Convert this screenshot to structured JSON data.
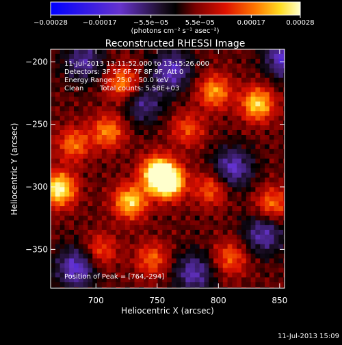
{
  "chart_data": {
    "type": "heatmap",
    "title": "Reconstructed RHESSI Image",
    "xlabel": "Heliocentric X (arcsec)",
    "ylabel": "Heliocentric Y (arcsec)",
    "xlim": [
      663,
      854
    ],
    "ylim": [
      -381,
      -190
    ],
    "x_ticks": [
      700,
      750,
      800,
      850
    ],
    "y_ticks": [
      -200,
      -250,
      -300,
      -350
    ],
    "x_tick_labels": [
      "700",
      "750",
      "800",
      "850"
    ],
    "y_tick_labels": [
      "−200",
      "−250",
      "−300",
      "−350"
    ],
    "colorbar": {
      "range": [
        -0.00028,
        0.00028
      ],
      "ticks": [
        -0.00028,
        -0.00017,
        -5.5e-05,
        5.5e-05,
        0.00017,
        0.00028
      ],
      "tick_labels": [
        "−0.00028",
        "−0.00017",
        "−5.5e−05",
        "5.5e−05",
        "0.00017",
        "0.00028"
      ],
      "units_label": "(photons cm⁻² s⁻¹ asec⁻²)"
    },
    "annotations": {
      "time_range": "11-Jul-2013 13:11:52.000 to 13:15:26.000",
      "detectors": "Detectors: 3F 5F 6F 7F 8F 9F, Att 0",
      "energy": "Energy Range: 25.0 - 50.0 keV",
      "method": "Clean",
      "counts": "Total counts: 5.58E+03",
      "peak": "Position of Peak = [764,-294]"
    },
    "peak_position": [
      764,
      -294
    ],
    "sources": [
      {
        "x": 757,
        "y": -294,
        "intensity": 1.0
      },
      {
        "x": 748,
        "y": -287,
        "intensity": 0.85
      },
      {
        "x": 668,
        "y": -300,
        "intensity": 0.9
      },
      {
        "x": 726,
        "y": -310,
        "intensity": 0.75
      },
      {
        "x": 830,
        "y": -232,
        "intensity": 0.75
      },
      {
        "x": 795,
        "y": -222,
        "intensity": 0.6
      },
      {
        "x": 720,
        "y": -215,
        "intensity": 0.55
      },
      {
        "x": 708,
        "y": -254,
        "intensity": 0.55
      },
      {
        "x": 842,
        "y": -312,
        "intensity": 0.5
      },
      {
        "x": 680,
        "y": -264,
        "intensity": 0.5
      },
      {
        "x": 792,
        "y": -300,
        "intensity": 0.45
      },
      {
        "x": 808,
        "y": -355,
        "intensity": 0.45
      },
      {
        "x": 702,
        "y": -349,
        "intensity": 0.4
      },
      {
        "x": 744,
        "y": -356,
        "intensity": 0.45
      },
      {
        "x": 773,
        "y": -252,
        "intensity": 0.4
      }
    ],
    "negatives": [
      {
        "x": 760,
        "y": -205,
        "intensity": 0.55
      },
      {
        "x": 810,
        "y": -283,
        "intensity": 0.55
      },
      {
        "x": 835,
        "y": -336,
        "intensity": 0.5
      },
      {
        "x": 682,
        "y": -363,
        "intensity": 0.6
      },
      {
        "x": 778,
        "y": -367,
        "intensity": 0.5
      },
      {
        "x": 852,
        "y": -195,
        "intensity": 0.6
      },
      {
        "x": 688,
        "y": -198,
        "intensity": 0.45
      },
      {
        "x": 737,
        "y": -232,
        "intensity": 0.4
      }
    ]
  },
  "footer": {
    "timestamp": "11-Jul-2013 15:09"
  }
}
